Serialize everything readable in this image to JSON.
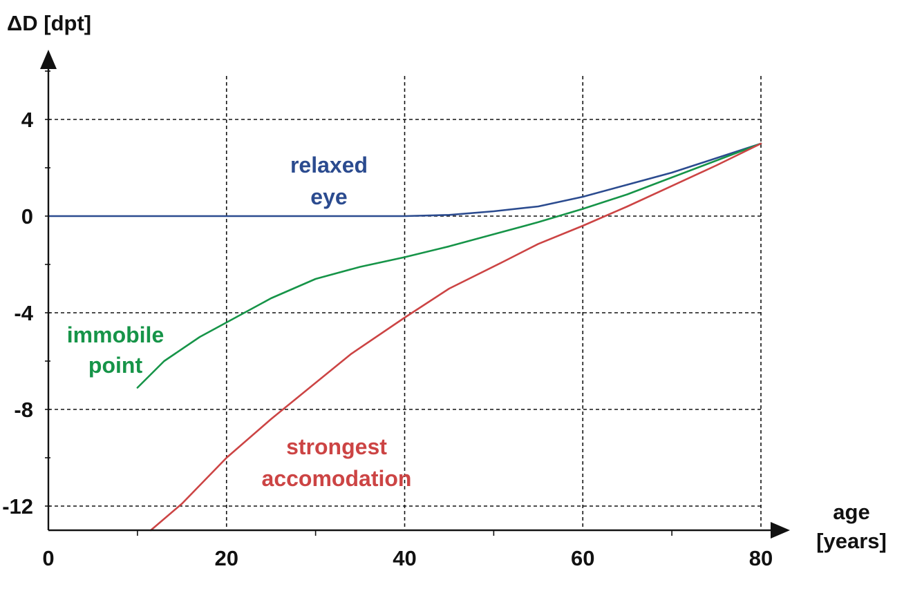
{
  "chart_data": {
    "type": "line",
    "title": "",
    "xlabel": [
      "age",
      "[years]"
    ],
    "ylabel": "ΔD [dpt]",
    "xlim": [
      0,
      80
    ],
    "ylim": [
      -13,
      6.5
    ],
    "x_ticks": [
      0,
      20,
      40,
      60,
      80
    ],
    "x_tick_labels": [
      "0",
      "20",
      "40",
      "60",
      "80"
    ],
    "y_ticks": [
      4,
      0,
      -4,
      -8,
      -12
    ],
    "y_tick_labels": [
      "4",
      "0",
      "-4",
      "-8",
      "-12"
    ],
    "grid": true,
    "grid_style": "dashed",
    "series": [
      {
        "name": "relaxed eye",
        "label_lines": [
          "relaxed",
          "eye"
        ],
        "color": "#2b4b8f",
        "x": [
          0,
          10,
          20,
          30,
          40,
          45,
          50,
          55,
          60,
          65,
          70,
          75,
          80
        ],
        "y": [
          0,
          0,
          0,
          0,
          0,
          0.05,
          0.2,
          0.4,
          0.8,
          1.3,
          1.8,
          2.4,
          3.0
        ]
      },
      {
        "name": "immobile point",
        "label_lines": [
          "immobile",
          "point"
        ],
        "color": "#169448",
        "x": [
          10,
          13,
          17,
          20,
          25,
          30,
          35,
          40,
          45,
          50,
          55,
          60,
          65,
          70,
          75,
          80
        ],
        "y": [
          -7.1,
          -6.0,
          -5.0,
          -4.4,
          -3.4,
          -2.6,
          -2.1,
          -1.7,
          -1.25,
          -0.75,
          -0.25,
          0.3,
          0.9,
          1.6,
          2.3,
          3.0
        ]
      },
      {
        "name": "strongest accomodation",
        "label_lines": [
          "strongest",
          "accomodation"
        ],
        "color": "#cc4444",
        "x": [
          11.5,
          15,
          20,
          25,
          30,
          34,
          40,
          45,
          51,
          55,
          60,
          65,
          70,
          75,
          80
        ],
        "y": [
          -13,
          -11.9,
          -10.0,
          -8.4,
          -6.9,
          -5.7,
          -4.2,
          -3.0,
          -1.9,
          -1.15,
          -0.4,
          0.4,
          1.25,
          2.1,
          3.0
        ]
      }
    ]
  }
}
